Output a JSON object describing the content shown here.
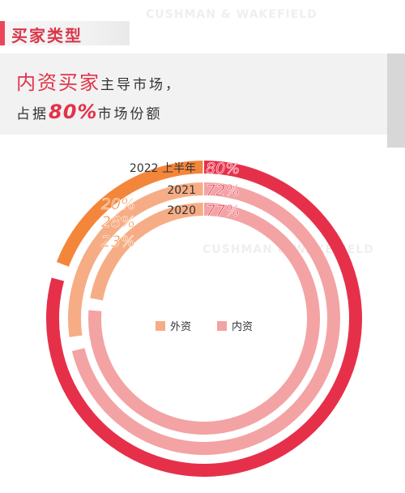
{
  "section": {
    "title": "买家类型"
  },
  "headline": {
    "line1_highlight": "内资买家",
    "line1_rest": "主导市场，",
    "line2_prefix": "占据",
    "line2_pct": "80%",
    "line2_suffix": "市场份额"
  },
  "watermark": {
    "text": "CUSHMAN & WAKEFIELD"
  },
  "colors": {
    "foreign": "#f4863b",
    "foreign_light": "#f6ad86",
    "domestic": "#e6304a",
    "domestic_light": "#f3a3a3"
  },
  "chart_data": {
    "type": "pie",
    "style": "concentric-rings",
    "categories": [
      "2022 上半年",
      "2021",
      "2020"
    ],
    "series": [
      {
        "name": "外资",
        "values": [
          20,
          28,
          23
        ],
        "value_labels": [
          "20%",
          "28%",
          "23%"
        ]
      },
      {
        "name": "内资",
        "values": [
          80,
          72,
          77
        ],
        "value_labels": [
          "80%",
          "72%",
          "77%"
        ]
      }
    ],
    "legend": [
      "外资",
      "内资"
    ],
    "legend_position": "center"
  }
}
